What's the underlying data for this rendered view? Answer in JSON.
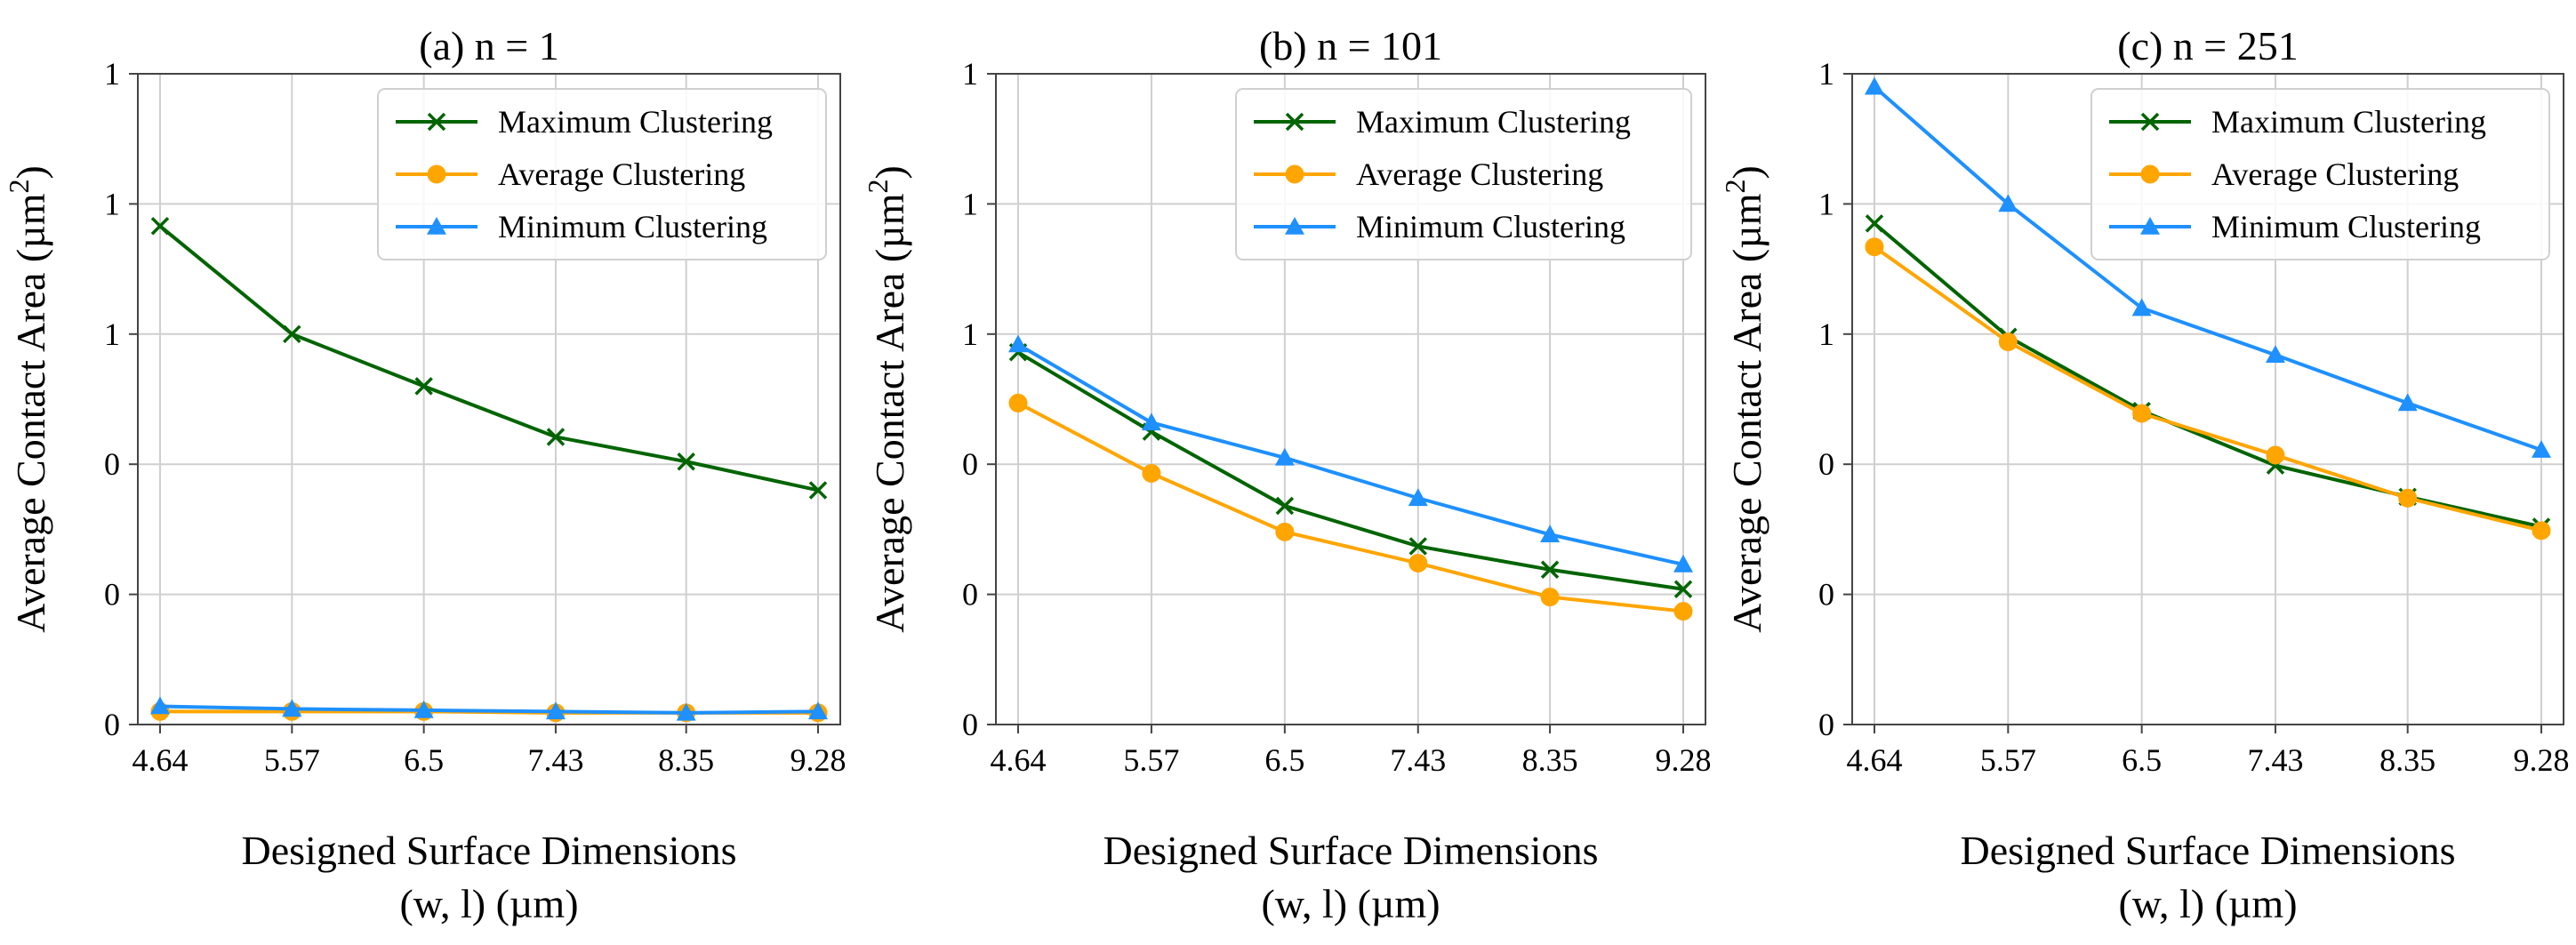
{
  "chart_data": [
    {
      "type": "line",
      "title": "(a) n = 1",
      "xlabel_line1": "Designed Surface Dimensions",
      "xlabel_line2": "(w, l) (µm)",
      "ylabel": "Average Contact Area (µm",
      "ylabel_sup": "2",
      "ylabel_close": ")",
      "x_ticks": [
        "4.64",
        "5.57",
        "6.5",
        "7.43",
        "8.35",
        "9.28"
      ],
      "y_tick_labels": [
        "0",
        "0",
        "0",
        "1",
        "1",
        "1"
      ],
      "ylim": [
        0,
        5
      ],
      "xlim": [
        4.64,
        9.28
      ],
      "legend_location": "upper right",
      "series": [
        {
          "name": "Maximum Clustering",
          "color": "#006400",
          "marker": "x",
          "x": [
            4.64,
            5.57,
            6.5,
            7.43,
            8.35,
            9.28
          ],
          "y": [
            3.83,
            3.0,
            2.6,
            2.21,
            2.02,
            1.8
          ]
        },
        {
          "name": "Average Clustering",
          "color": "#FFA500",
          "marker": "o",
          "x": [
            4.64,
            5.57,
            6.5,
            7.43,
            8.35,
            9.28
          ],
          "y": [
            0.1,
            0.1,
            0.1,
            0.09,
            0.09,
            0.09
          ]
        },
        {
          "name": "Minimum Clustering",
          "color": "#1E90FF",
          "marker": "^",
          "x": [
            4.64,
            5.57,
            6.5,
            7.43,
            8.35,
            9.28
          ],
          "y": [
            0.14,
            0.12,
            0.11,
            0.1,
            0.09,
            0.1
          ]
        }
      ]
    },
    {
      "type": "line",
      "title": "(b) n = 101",
      "xlabel_line1": "Designed Surface Dimensions",
      "xlabel_line2": "(w, l) (µm)",
      "ylabel": "Average Contact Area (µm",
      "ylabel_sup": "2",
      "ylabel_close": ")",
      "x_ticks": [
        "4.64",
        "5.57",
        "6.5",
        "7.43",
        "8.35",
        "9.28"
      ],
      "y_tick_labels": [
        "0",
        "0",
        "0",
        "1",
        "1",
        "1"
      ],
      "ylim": [
        0,
        5
      ],
      "xlim": [
        4.64,
        9.28
      ],
      "legend_location": "upper right",
      "series": [
        {
          "name": "Maximum Clustering",
          "color": "#006400",
          "marker": "x",
          "x": [
            4.64,
            5.57,
            6.5,
            7.43,
            8.35,
            9.28
          ],
          "y": [
            2.86,
            2.25,
            1.68,
            1.37,
            1.19,
            1.04
          ]
        },
        {
          "name": "Average Clustering",
          "color": "#FFA500",
          "marker": "o",
          "x": [
            4.64,
            5.57,
            6.5,
            7.43,
            8.35,
            9.28
          ],
          "y": [
            2.47,
            1.93,
            1.48,
            1.24,
            0.98,
            0.87
          ]
        },
        {
          "name": "Minimum Clustering",
          "color": "#1E90FF",
          "marker": "^",
          "x": [
            4.64,
            5.57,
            6.5,
            7.43,
            8.35,
            9.28
          ],
          "y": [
            2.92,
            2.32,
            2.05,
            1.74,
            1.46,
            1.23
          ]
        }
      ]
    },
    {
      "type": "line",
      "title": "(c) n = 251",
      "xlabel_line1": "Designed Surface Dimensions",
      "xlabel_line2": "(w, l) (µm)",
      "ylabel": "Average Contact Area (µm",
      "ylabel_sup": "2",
      "ylabel_close": ")",
      "x_ticks": [
        "4.64",
        "5.57",
        "6.5",
        "7.43",
        "8.35",
        "9.28"
      ],
      "y_tick_labels": [
        "0",
        "0",
        "0",
        "1",
        "1",
        "1"
      ],
      "ylim": [
        0,
        5
      ],
      "xlim": [
        4.64,
        9.28
      ],
      "legend_location": "upper right",
      "series": [
        {
          "name": "Maximum Clustering",
          "color": "#006400",
          "marker": "x",
          "x": [
            4.64,
            5.57,
            6.5,
            7.43,
            8.35,
            9.28
          ],
          "y": [
            3.85,
            2.98,
            2.41,
            1.99,
            1.75,
            1.52
          ]
        },
        {
          "name": "Average Clustering",
          "color": "#FFA500",
          "marker": "o",
          "x": [
            4.64,
            5.57,
            6.5,
            7.43,
            8.35,
            9.28
          ],
          "y": [
            3.67,
            2.94,
            2.39,
            2.07,
            1.74,
            1.49
          ]
        },
        {
          "name": "Minimum Clustering",
          "color": "#1E90FF",
          "marker": "^",
          "x": [
            4.64,
            5.57,
            6.5,
            7.43,
            8.35,
            9.28
          ],
          "y": [
            4.9,
            4.0,
            3.2,
            2.84,
            2.47,
            2.11
          ]
        }
      ]
    }
  ]
}
